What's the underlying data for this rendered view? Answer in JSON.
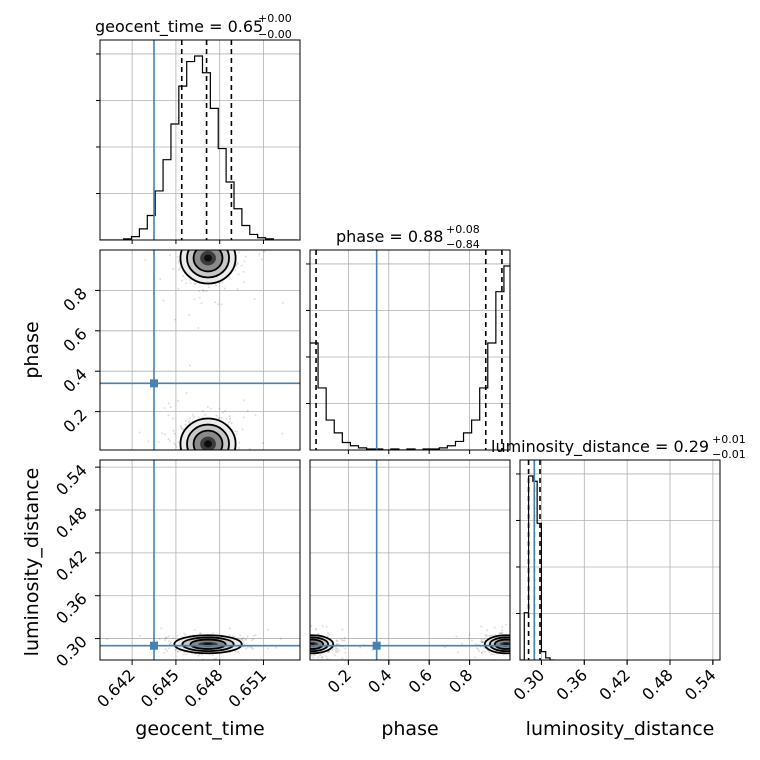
{
  "chart_data": {
    "type": "corner",
    "parameters": [
      "geocent_time",
      "phase",
      "luminosity_distance"
    ],
    "truth": {
      "geocent_time": 0.6435,
      "phase": 0.34,
      "luminosity_distance": 0.29
    },
    "titles": [
      {
        "text": "geocent_time = 0.65",
        "sup": "+0.00",
        "sub": "−0.00"
      },
      {
        "text": "phase = 0.88",
        "sup": "+0.08",
        "sub": "−0.84"
      },
      {
        "text": "luminosity_distance = 0.29",
        "sup": "+0.01",
        "sub": "−0.01"
      }
    ],
    "axes": {
      "geocent_time": {
        "label": "geocent_time",
        "range": [
          0.6398,
          0.6535
        ],
        "ticks": [
          0.642,
          0.645,
          0.648,
          0.651
        ],
        "tick_labels": [
          "0.642",
          "0.645",
          "0.648",
          "0.651"
        ]
      },
      "phase": {
        "label": "phase",
        "range": [
          0.01,
          1.0
        ],
        "ticks": [
          0.2,
          0.4,
          0.6,
          0.8
        ],
        "tick_labels": [
          "0.2",
          "0.4",
          "0.6",
          "0.8"
        ]
      },
      "luminosity_distance": {
        "label": "luminosity_distance",
        "range": [
          0.27,
          0.55
        ],
        "ticks": [
          0.3,
          0.36,
          0.42,
          0.48,
          0.54
        ],
        "tick_labels": [
          "0.30",
          "0.36",
          "0.42",
          "0.48",
          "0.54"
        ]
      }
    },
    "marginals": [
      {
        "param": "geocent_time",
        "quantiles": [
          0.6454,
          0.6471,
          0.6488
        ],
        "bins": [
          0.6398,
          0.64034,
          0.64088,
          0.64142,
          0.64196,
          0.6425,
          0.64304,
          0.64358,
          0.64412,
          0.64466,
          0.6452,
          0.64574,
          0.64628,
          0.64682,
          0.64736,
          0.6479,
          0.64844,
          0.64898,
          0.64952,
          0.65006,
          0.6506,
          0.65114,
          0.65168,
          0.65222,
          0.65276,
          0.6533
        ],
        "counts": [
          0,
          0,
          0,
          1,
          3,
          10,
          22,
          44,
          72,
          104,
          138,
          160,
          165,
          150,
          118,
          82,
          52,
          28,
          13,
          5,
          2,
          1,
          0,
          0,
          0
        ]
      },
      {
        "param": "phase",
        "quantiles": [
          0.04,
          0.88,
          0.96
        ],
        "bins": [
          0.01,
          0.05,
          0.09,
          0.13,
          0.17,
          0.21,
          0.25,
          0.29,
          0.33,
          0.37,
          0.41,
          0.45,
          0.49,
          0.53,
          0.57,
          0.61,
          0.65,
          0.69,
          0.73,
          0.77,
          0.81,
          0.85,
          0.89,
          0.93,
          0.97,
          1.01
        ],
        "counts": [
          100,
          58,
          28,
          16,
          7,
          4,
          2,
          1,
          1,
          0,
          1,
          0,
          1,
          0,
          1,
          1,
          2,
          4,
          8,
          16,
          28,
          58,
          100,
          148,
          172
        ]
      },
      {
        "param": "luminosity_distance",
        "quantiles": [
          0.282,
          0.29,
          0.298
        ],
        "bins": [
          0.27,
          0.276,
          0.282,
          0.288,
          0.294,
          0.3,
          0.306,
          0.312,
          0.318
        ],
        "counts": [
          0,
          45,
          175,
          170,
          130,
          8,
          2,
          0
        ]
      }
    ],
    "pairs": [
      {
        "x": "geocent_time",
        "y": "phase",
        "clusters": [
          {
            "x": 0.6472,
            "y": 0.96,
            "sx": 0.0009,
            "sy": 0.06
          },
          {
            "x": 0.6472,
            "y": 0.04,
            "sx": 0.0009,
            "sy": 0.06
          }
        ]
      },
      {
        "x": "geocent_time",
        "y": "luminosity_distance",
        "clusters": [
          {
            "x": 0.6472,
            "y": 0.292,
            "sx": 0.0011,
            "sy": 0.006
          }
        ]
      },
      {
        "x": "phase",
        "y": "luminosity_distance",
        "clusters": [
          {
            "x": 0.02,
            "y": 0.292,
            "sx": 0.05,
            "sy": 0.006
          },
          {
            "x": 0.98,
            "y": 0.292,
            "sx": 0.05,
            "sy": 0.006
          }
        ]
      }
    ],
    "colors": {
      "truth": "#4682b4",
      "hist": "#000000",
      "grid": "#b0b0b0"
    }
  }
}
